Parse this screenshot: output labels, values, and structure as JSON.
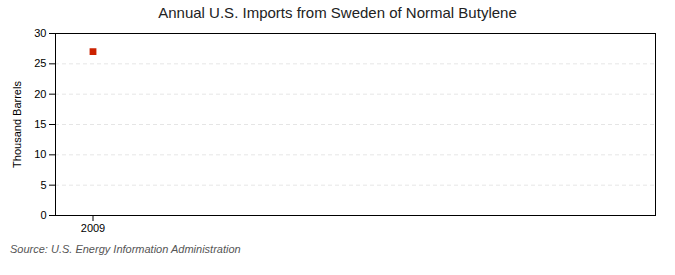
{
  "chart_data": {
    "type": "scatter",
    "title": "Annual U.S. Imports from Sweden of Normal Butylene",
    "ylabel": "Thousand Barrels",
    "source": "Source: U.S. Energy Information Administration",
    "x": [
      2009
    ],
    "values": [
      27
    ],
    "color": "#cc2200",
    "marker": "square",
    "xlim": [
      2008.6,
      2015.0
    ],
    "ylim": [
      0,
      30
    ],
    "xticks": [
      2009
    ],
    "yticks": [
      0,
      5,
      10,
      15,
      20,
      25,
      30
    ],
    "grid": "y"
  }
}
